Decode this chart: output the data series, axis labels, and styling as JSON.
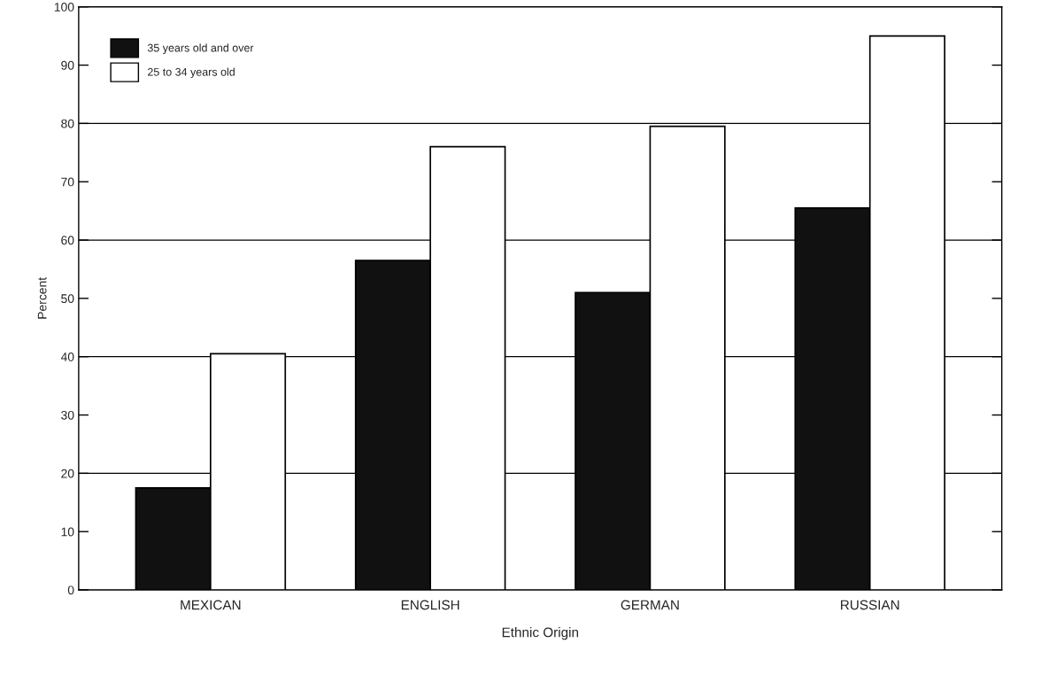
{
  "chart_data": {
    "type": "bar",
    "xlabel": "Ethnic Origin",
    "ylabel": "Percent",
    "categories": [
      "MEXICAN",
      "ENGLISH",
      "GERMAN",
      "RUSSIAN"
    ],
    "series": [
      {
        "name": "35 years old and over",
        "color": "#111111",
        "values": [
          17.5,
          56.5,
          51,
          65.5
        ]
      },
      {
        "name": "25 to 34 years old",
        "color": "#ffffff",
        "values": [
          40.5,
          76,
          79.5,
          95
        ]
      }
    ],
    "ylim": [
      0,
      100
    ],
    "yticks": [
      0,
      10,
      20,
      30,
      40,
      50,
      60,
      70,
      80,
      90,
      100
    ],
    "ref_lines": [
      {
        "axis": "y",
        "value": 20
      },
      {
        "axis": "y",
        "value": 40
      },
      {
        "axis": "y",
        "value": 60
      },
      {
        "axis": "y",
        "value": 80
      }
    ],
    "legend": "top left"
  }
}
